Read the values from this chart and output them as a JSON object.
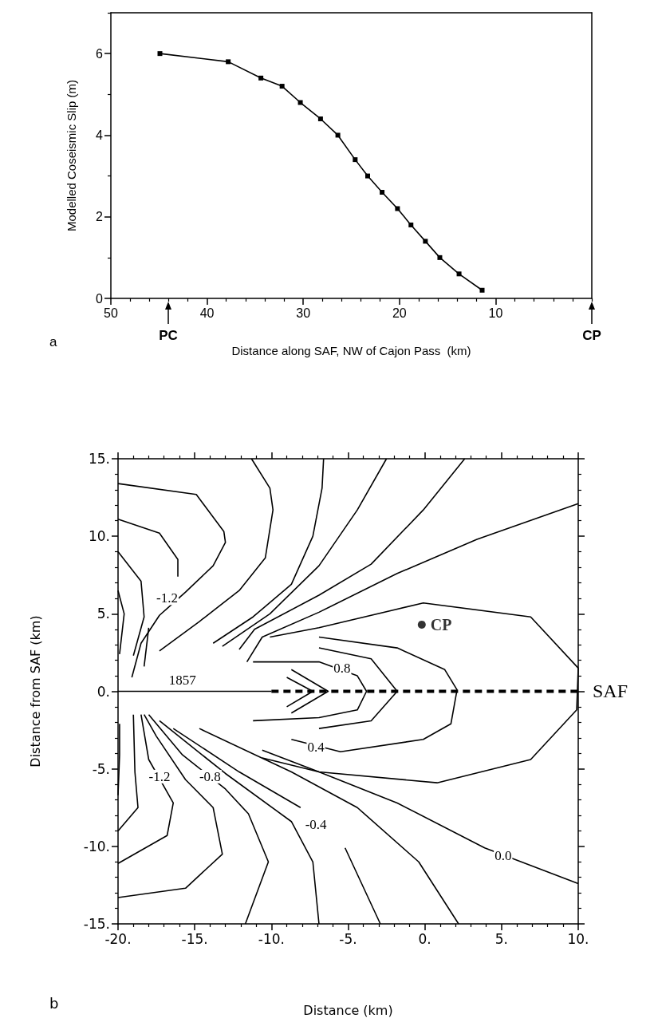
{
  "chart_data": [
    {
      "type": "line",
      "ylabel": "Modelled Coseismic Slip (m)",
      "xlabel": "Distance along SAF, NW of Cajon Pass  (km)",
      "marker": "square",
      "line_style": "solid",
      "grid": false,
      "xlim": [
        50,
        0
      ],
      "xticks": [
        50,
        {
          "value": 48,
          "label": null
        },
        {
          "value": 46,
          "label": null
        },
        {
          "value": 44,
          "label": null
        },
        {
          "value": 42,
          "label": null
        },
        40,
        {
          "value": 38,
          "label": null
        },
        {
          "value": 36,
          "label": null
        },
        {
          "value": 34,
          "label": null
        },
        {
          "value": 32,
          "label": null
        },
        30,
        {
          "value": 28,
          "label": null
        },
        {
          "value": 26,
          "label": null
        },
        {
          "value": 24,
          "label": null
        },
        {
          "value": 22,
          "label": null
        },
        20,
        {
          "value": 18,
          "label": null
        },
        {
          "value": 16,
          "label": null
        },
        {
          "value": 14,
          "label": null
        },
        {
          "value": 12,
          "label": null
        },
        10,
        {
          "value": 8,
          "label": null
        },
        {
          "value": 6,
          "label": null
        },
        {
          "value": 4,
          "label": null
        },
        {
          "value": 2,
          "label": null
        },
        {
          "value": 0,
          "label": null
        }
      ],
      "ylim": [
        0,
        7
      ],
      "yticks": [
        0,
        {
          "value": 1,
          "label": null
        },
        2,
        {
          "value": 3,
          "label": null
        },
        4,
        {
          "value": 5,
          "label": null
        },
        6,
        {
          "value": 7,
          "label": null
        }
      ],
      "series": [
        {
          "color": "#000000",
          "x": [
            44.9,
            37.8,
            34.4,
            32.2,
            30.3,
            28.2,
            26.4,
            24.6,
            23.3,
            21.8,
            20.2,
            18.8,
            17.3,
            15.8,
            13.8,
            11.4
          ],
          "values": [
            6.0,
            5.8,
            5.4,
            5.2,
            4.8,
            4.4,
            4.0,
            3.4,
            3.0,
            2.6,
            2.2,
            1.8,
            1.4,
            1.0,
            0.6,
            0.2
          ]
        }
      ],
      "annotations": [
        "PC",
        "CP",
        "a"
      ]
    },
    {
      "type": "line",
      "ylabel": "Distance from SAF (km)",
      "xlabel": "Distance (km)",
      "marker": "none",
      "grid": false,
      "xlim": [
        -20,
        10
      ],
      "xticks": [
        {
          "value": -20,
          "label": "-20."
        },
        {
          "value": -19,
          "label": null
        },
        {
          "value": -18,
          "label": null
        },
        {
          "value": -17,
          "label": null
        },
        {
          "value": -16,
          "label": null
        },
        {
          "value": -15,
          "label": "-15."
        },
        {
          "value": -14,
          "label": null
        },
        {
          "value": -13,
          "label": null
        },
        {
          "value": -12,
          "label": null
        },
        {
          "value": -11,
          "label": null
        },
        {
          "value": -10,
          "label": "-10."
        },
        {
          "value": -9,
          "label": null
        },
        {
          "value": -8,
          "label": null
        },
        {
          "value": -7,
          "label": null
        },
        {
          "value": -6,
          "label": null
        },
        {
          "value": -5,
          "label": "-5."
        },
        {
          "value": -4,
          "label": null
        },
        {
          "value": -3,
          "label": null
        },
        {
          "value": -2,
          "label": null
        },
        {
          "value": -1,
          "label": null
        },
        {
          "value": 0,
          "label": "0."
        },
        {
          "value": 1,
          "label": null
        },
        {
          "value": 2,
          "label": null
        },
        {
          "value": 3,
          "label": null
        },
        {
          "value": 4,
          "label": null
        },
        {
          "value": 5,
          "label": "5."
        },
        {
          "value": 6,
          "label": null
        },
        {
          "value": 7,
          "label": null
        },
        {
          "value": 8,
          "label": null
        },
        {
          "value": 9,
          "label": null
        },
        {
          "value": 10,
          "label": "10."
        }
      ],
      "ylim": [
        -15,
        15
      ],
      "yticks": [
        {
          "value": -15,
          "label": "-15."
        },
        {
          "value": -14,
          "label": null
        },
        {
          "value": -13,
          "label": null
        },
        {
          "value": -12,
          "label": null
        },
        {
          "value": -11,
          "label": null
        },
        {
          "value": -10,
          "label": "-10."
        },
        {
          "value": -9,
          "label": null
        },
        {
          "value": -8,
          "label": null
        },
        {
          "value": -7,
          "label": null
        },
        {
          "value": -6,
          "label": null
        },
        {
          "value": -5,
          "label": "-5."
        },
        {
          "value": -4,
          "label": null
        },
        {
          "value": -3,
          "label": null
        },
        {
          "value": -2,
          "label": null
        },
        {
          "value": -1,
          "label": null
        },
        {
          "value": 0,
          "label": "0."
        },
        {
          "value": 1,
          "label": null
        },
        {
          "value": 2,
          "label": null
        },
        {
          "value": 3,
          "label": null
        },
        {
          "value": 4,
          "label": null
        },
        {
          "value": 5,
          "label": "5."
        },
        {
          "value": 6,
          "label": null
        },
        {
          "value": 7,
          "label": null
        },
        {
          "value": 8,
          "label": null
        },
        {
          "value": 9,
          "label": null
        },
        {
          "value": 10,
          "label": "10."
        },
        {
          "value": 11,
          "label": null
        },
        {
          "value": 12,
          "label": null
        },
        {
          "value": 13,
          "label": null
        },
        {
          "value": 14,
          "label": null
        },
        {
          "value": 15,
          "label": "15."
        }
      ],
      "series": [
        {
          "color": "#000000",
          "line_style": "solid",
          "x": [
            -20,
            -10
          ],
          "values": [
            0,
            0
          ]
        },
        {
          "color": "#000000",
          "line_style": "dashed",
          "x": [
            -10,
            10
          ],
          "values": [
            0,
            0
          ]
        },
        {
          "color": "#000000",
          "x": [
            -20,
            -17.3,
            -16.1,
            -16.1
          ],
          "values": [
            11.1,
            10.2,
            8.5,
            7.4
          ]
        },
        {
          "color": "#000000",
          "x": [
            -18.0,
            -18.3
          ],
          "values": [
            4.1,
            1.6
          ]
        },
        {
          "color": "#000000",
          "x": [
            -20,
            -14.9,
            -13.1,
            -13.0,
            -13.8,
            -15.6,
            -17.3,
            -18.5,
            -19.1
          ],
          "values": [
            13.4,
            12.7,
            10.3,
            9.6,
            8.1,
            6.4,
            4.9,
            3.1,
            0.9
          ]
        },
        {
          "color": "#000000",
          "x": [
            -11.3,
            -10.1,
            -9.9,
            -10.4,
            -12.1,
            -14.7,
            -17.3
          ],
          "values": [
            15,
            13.1,
            11.7,
            8.6,
            6.5,
            4.5,
            2.6
          ]
        },
        {
          "color": "#000000",
          "x": [
            -6.6,
            -6.7,
            -7.3,
            -8.7,
            -11.2,
            -13.8
          ],
          "values": [
            15,
            13.1,
            10.0,
            6.9,
            4.8,
            3.1
          ]
        },
        {
          "color": "#000000",
          "x": [
            -2.5,
            -4.4,
            -6.9,
            -10.1,
            -13.2
          ],
          "values": [
            15,
            11.7,
            8.1,
            5.0,
            2.9
          ]
        },
        {
          "color": "#000000",
          "x": [
            2.6,
            -0.1,
            -3.5,
            -6.9,
            -11.1,
            -12.1
          ],
          "values": [
            15,
            11.7,
            8.2,
            6.2,
            4.0,
            2.7
          ]
        },
        {
          "color": "#000000",
          "x": [
            10,
            3.4,
            -1.8,
            -6.9,
            -10.6,
            -11.6
          ],
          "values": [
            12.1,
            9.8,
            7.6,
            5.1,
            3.5,
            1.9
          ]
        },
        {
          "color": "#000000",
          "x": [
            -10.1,
            -6.9,
            -0.1,
            6.9,
            10,
            9.9,
            6.9,
            0.8,
            -6.9,
            -10.6
          ],
          "values": [
            3.5,
            4.1,
            5.7,
            4.8,
            1.5,
            -1.2,
            -4.4,
            -5.9,
            -5.2,
            -4.3
          ]
        },
        {
          "color": "#000000",
          "x": [
            -6.9,
            -1.8,
            1.3,
            2.1,
            1.7,
            -0.1,
            -5.5,
            -8.7
          ],
          "values": [
            3.5,
            2.8,
            1.4,
            0.1,
            -2.1,
            -3.1,
            -3.9,
            -3.1
          ]
        },
        {
          "color": "#000000",
          "x": [
            -6.9,
            -3.5,
            -1.8,
            -3.5,
            -6.9
          ],
          "values": [
            2.8,
            2.1,
            0,
            -1.9,
            -2.4
          ]
        },
        {
          "color": "#000000",
          "x": [
            -11.2,
            -6.9,
            -4.4,
            -3.8,
            -4.4,
            -6.9,
            -11.2
          ],
          "values": [
            1.9,
            1.9,
            1.0,
            0,
            -1.2,
            -1.7,
            -1.9
          ]
        },
        {
          "color": "#000000",
          "x": [
            -8.7,
            -6.3,
            -8.7
          ],
          "values": [
            1.4,
            0,
            -1.4
          ]
        },
        {
          "color": "#000000",
          "x": [
            -9.0,
            -7.3,
            -9.0
          ],
          "values": [
            0.9,
            0,
            -1.0
          ]
        },
        {
          "color": "#000000",
          "x": [
            -20,
            -19.6,
            -19.9
          ],
          "values": [
            6.5,
            5.0,
            2.4
          ]
        },
        {
          "color": "#000000",
          "x": [
            -20,
            -18.5,
            -18.3,
            -19.0
          ],
          "values": [
            9.0,
            7.1,
            4.8,
            2.3
          ]
        },
        {
          "color": "#000000",
          "x": [
            -19.9,
            -19.9,
            -20
          ],
          "values": [
            -2.1,
            -4.1,
            -6.7
          ]
        },
        {
          "color": "#000000",
          "x": [
            -19.0,
            -18.9,
            -18.7,
            -20
          ],
          "values": [
            -1.5,
            -5.2,
            -7.5,
            -9.0
          ]
        },
        {
          "color": "#000000",
          "x": [
            -18.5,
            -18.0,
            -16.4,
            -16.8,
            -20
          ],
          "values": [
            -1.5,
            -4.4,
            -7.2,
            -9.3,
            -11.1
          ]
        },
        {
          "color": "#000000",
          "x": [
            -18.3,
            -17.5,
            -15.6,
            -13.8,
            -13.2,
            -15.6,
            -20
          ],
          "values": [
            -1.5,
            -2.9,
            -5.7,
            -7.5,
            -10.5,
            -12.7,
            -13.3
          ]
        },
        {
          "color": "#000000",
          "x": [
            -18.0,
            -15.8,
            -13.0,
            -11.5,
            -10.2,
            -11.7
          ],
          "values": [
            -1.5,
            -4.1,
            -6.3,
            -7.9,
            -11,
            -15
          ]
        },
        {
          "color": "#000000",
          "x": [
            -17.3,
            -13.0,
            -8.7,
            -7.3,
            -6.9
          ],
          "values": [
            -1.9,
            -5.3,
            -8.4,
            -11,
            -15
          ]
        },
        {
          "color": "#000000",
          "x": [
            -16.4,
            -12.1,
            -8.1,
            -6.9,
            -5.2,
            -2.9
          ],
          "values": [
            -2.4,
            -5.2,
            -7.5,
            null,
            -10.1,
            -15
          ]
        },
        {
          "color": "#000000",
          "x": [
            -14.7,
            -8.7,
            -4.4,
            -0.4,
            2.2
          ],
          "values": [
            -2.4,
            -5.2,
            -7.5,
            -11,
            -15
          ]
        },
        {
          "color": "#000000",
          "x": [
            -10.6,
            -6.9,
            -1.8,
            3.9,
            10
          ],
          "values": [
            -3.8,
            -5.2,
            -7.2,
            -10.1,
            -12.4
          ]
        },
        {
          "type": "scatter",
          "name": "CP",
          "marker": "circle",
          "color": "#000000",
          "x": [
            -0.2
          ],
          "values": [
            4.3
          ]
        }
      ],
      "annotations": [
        {
          "text": "1857",
          "x": -15.8,
          "y": 0.7
        },
        "SAF",
        {
          "text": "-1.2",
          "x": -16.8,
          "y": 6.0
        },
        {
          "text": "0.8",
          "x": -5.4,
          "y": 1.5
        },
        {
          "text": "0.4",
          "x": -7.1,
          "y": -3.6
        },
        {
          "text": "-1.2",
          "x": -17.3,
          "y": -5.5
        },
        {
          "text": "-0.8",
          "x": -14.0,
          "y": -5.5
        },
        {
          "text": "-0.4",
          "x": -7.1,
          "y": -8.6
        },
        {
          "text": "0.0",
          "x": 5.1,
          "y": -10.6
        },
        "b"
      ]
    }
  ]
}
